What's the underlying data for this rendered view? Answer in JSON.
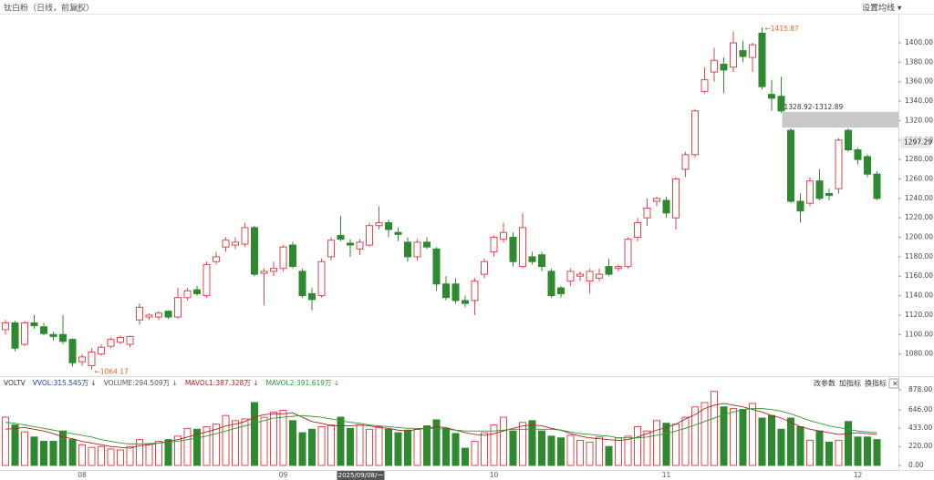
{
  "chart_data": {
    "type": "candlestick",
    "title": "钛白粉（日线，前复权）",
    "settings_button": "设置均线 ▾",
    "ylim": [
      1060,
      1430
    ],
    "yticks": [
      {
        "value": 1080,
        "label": "1080.00"
      },
      {
        "value": 1100,
        "label": "1100.00"
      },
      {
        "value": 1120,
        "label": "1120.00"
      },
      {
        "value": 1140,
        "label": "1140.00"
      },
      {
        "value": 1160,
        "label": "1160.00"
      },
      {
        "value": 1180,
        "label": "1180.00"
      },
      {
        "value": 1200,
        "label": "1200.00"
      },
      {
        "value": 1220,
        "label": "1220.00"
      },
      {
        "value": 1240,
        "label": "1240.00"
      },
      {
        "value": 1260,
        "label": "1260.00"
      },
      {
        "value": 1280,
        "label": "1280.00"
      },
      {
        "value": 1300,
        "label": "1300.00"
      },
      {
        "value": 1320,
        "label": "1320.00"
      },
      {
        "value": 1340,
        "label": "1340.00"
      },
      {
        "value": 1360,
        "label": "1360.00"
      },
      {
        "value": 1380,
        "label": "1380.00"
      },
      {
        "value": 1400,
        "label": "1400.00"
      }
    ],
    "current_price": {
      "value": 1297.29,
      "label": "1297.29"
    },
    "up_color": "#e2474a",
    "down_color": "#2f8a2f",
    "annotations": [
      "←1415.87",
      "←1064.17"
    ],
    "gap": {
      "label": "1328.92-1312.89",
      "top": 1328.92,
      "bottom": 1312.89
    },
    "categories": [
      null,
      null,
      null,
      null,
      null,
      null,
      null,
      null,
      "08",
      null,
      null,
      null,
      null,
      null,
      null,
      null,
      null,
      null,
      null,
      null,
      null,
      null,
      null,
      null,
      null,
      null,
      null,
      null,
      null,
      "09",
      null,
      null,
      null,
      null,
      null,
      null,
      null,
      "2025/09/08/一",
      null,
      null,
      null,
      null,
      null,
      null,
      null,
      null,
      null,
      null,
      null,
      null,
      null,
      "10",
      null,
      null,
      null,
      null,
      null,
      null,
      null,
      null,
      null,
      null,
      null,
      null,
      null,
      null,
      null,
      null,
      null,
      "11",
      null,
      null,
      null,
      null,
      null,
      null,
      null,
      null,
      null,
      null,
      null,
      null,
      null,
      null,
      null,
      null,
      null,
      null,
      null,
      "12",
      null,
      null
    ],
    "open": [
      1105,
      1112,
      1090,
      1112,
      1108,
      1100,
      1100,
      1095,
      1072,
      1068,
      1080,
      1088,
      1092,
      1090,
      1115,
      1118,
      1118,
      1124,
      1118,
      1138,
      1146,
      1140,
      1175,
      1190,
      1192,
      1193,
      1210,
      1163,
      1165,
      1168,
      1192,
      1165,
      1142,
      1140,
      1180,
      1202,
      1194,
      1188,
      1192,
      1212,
      1215,
      1205,
      1195,
      1180,
      1195,
      1188,
      1152,
      1152,
      1135,
      1135,
      1162,
      1185,
      1198,
      1200,
      1170,
      1180,
      1182,
      1165,
      1148,
      1155,
      1160,
      1155,
      1158,
      1170,
      1168,
      1170,
      1200,
      1220,
      1237,
      1238,
      1220,
      1270,
      1285,
      1350,
      1370,
      1378,
      1375,
      1392,
      1385,
      1410,
      1347,
      1345,
      1310,
      1237,
      1235,
      1258,
      1245,
      1250,
      1310,
      1290,
      1283,
      1265
    ],
    "high": [
      1115,
      1114,
      1114,
      1120,
      1112,
      1103,
      1120,
      1096,
      1080,
      1086,
      1090,
      1097,
      1099,
      1099,
      1132,
      1122,
      1124,
      1125,
      1148,
      1148,
      1150,
      1175,
      1185,
      1200,
      1200,
      1215,
      1212,
      1168,
      1175,
      1192,
      1195,
      1168,
      1148,
      1178,
      1200,
      1222,
      1198,
      1198,
      1215,
      1232,
      1218,
      1210,
      1200,
      1198,
      1200,
      1190,
      1160,
      1158,
      1140,
      1158,
      1178,
      1202,
      1215,
      1205,
      1225,
      1185,
      1185,
      1168,
      1150,
      1168,
      1165,
      1168,
      1168,
      1178,
      1172,
      1200,
      1220,
      1240,
      1242,
      1242,
      1262,
      1288,
      1332,
      1375,
      1395,
      1385,
      1412,
      1402,
      1400,
      1415.87,
      1362,
      1365,
      1312,
      1245,
      1262,
      1270,
      1250,
      1302,
      1312,
      1292,
      1285,
      1268
    ],
    "low": [
      1100,
      1083,
      1088,
      1106,
      1099,
      1094,
      1090,
      1067,
      1068,
      1064.17,
      1078,
      1086,
      1090,
      1087,
      1110,
      1115,
      1115,
      1116,
      1116,
      1135,
      1140,
      1138,
      1172,
      1185,
      1188,
      1190,
      1160,
      1130,
      1160,
      1165,
      1168,
      1138,
      1125,
      1138,
      1176,
      1196,
      1180,
      1182,
      1190,
      1208,
      1200,
      1196,
      1175,
      1176,
      1188,
      1145,
      1135,
      1132,
      1128,
      1120,
      1158,
      1180,
      1195,
      1170,
      1168,
      1172,
      1165,
      1138,
      1138,
      1150,
      1155,
      1142,
      1155,
      1160,
      1165,
      1168,
      1196,
      1212,
      1232,
      1220,
      1208,
      1262,
      1282,
      1348,
      1360,
      1348,
      1370,
      1380,
      1370,
      1352,
      1330,
      1328,
      1235,
      1215,
      1232,
      1238,
      1238,
      1245,
      1288,
      1275,
      1262,
      1238
    ],
    "close": [
      1112,
      1086,
      1112,
      1109,
      1101,
      1098,
      1093,
      1071,
      1077,
      1082,
      1087,
      1095,
      1097,
      1098,
      1128,
      1120,
      1122,
      1118,
      1138,
      1145,
      1142,
      1172,
      1180,
      1197,
      1195,
      1210,
      1162,
      1165,
      1168,
      1190,
      1170,
      1140,
      1136,
      1175,
      1197,
      1198,
      1192,
      1195,
      1212,
      1215,
      1208,
      1203,
      1180,
      1195,
      1190,
      1152,
      1138,
      1135,
      1132,
      1155,
      1175,
      1200,
      1205,
      1175,
      1210,
      1175,
      1170,
      1140,
      1142,
      1165,
      1162,
      1165,
      1162,
      1162,
      1170,
      1198,
      1215,
      1230,
      1240,
      1225,
      1260,
      1285,
      1330,
      1362,
      1382,
      1372,
      1400,
      1386,
      1398,
      1355,
      1343,
      1330,
      1237,
      1227,
      1258,
      1240,
      1243,
      1300,
      1290,
      1280,
      1265,
      1240
    ],
    "volume_panel": {
      "indicators": [
        "VOLTV",
        "VVOL:315.545万 ↓",
        "VOLUME:294.509万 ↓",
        "MAVOL1:387.328万 ↓",
        "MAVOL2:391.619万 ↓"
      ],
      "buttons": [
        "改参数",
        "加指标",
        "换指标",
        "×"
      ],
      "ylim": [
        0,
        984
      ],
      "yticks": [
        {
          "value": 878,
          "label": "878.00"
        },
        {
          "value": 646,
          "label": "646.00"
        },
        {
          "value": 433,
          "label": "433.00"
        },
        {
          "value": 220,
          "label": "220.00"
        },
        {
          "value": 0,
          "label": "0.00"
        }
      ],
      "volume": [
        560,
        470,
        390,
        330,
        280,
        280,
        400,
        300,
        240,
        210,
        220,
        190,
        180,
        220,
        300,
        250,
        280,
        300,
        340,
        430,
        420,
        450,
        480,
        580,
        520,
        540,
        730,
        560,
        620,
        640,
        520,
        380,
        420,
        450,
        470,
        560,
        430,
        470,
        420,
        450,
        420,
        380,
        410,
        420,
        460,
        530,
        430,
        370,
        200,
        280,
        380,
        470,
        560,
        400,
        500,
        520,
        400,
        340,
        320,
        350,
        290,
        270,
        330,
        220,
        320,
        340,
        450,
        400,
        520,
        490,
        480,
        560,
        680,
        730,
        860,
        680,
        660,
        650,
        720,
        550,
        580,
        420,
        550,
        450,
        290,
        400,
        270,
        290,
        510,
        330,
        330,
        300
      ],
      "series": [
        {
          "name": "MAVOL1",
          "color": "#b22222",
          "values": [
            420,
            430,
            440,
            420,
            400,
            370,
            330,
            310,
            280,
            260,
            240,
            220,
            210,
            200,
            230,
            240,
            260,
            280,
            300,
            330,
            360,
            390,
            420,
            460,
            480,
            510,
            560,
            590,
            600,
            600,
            610,
            560,
            510,
            490,
            460,
            460,
            460,
            470,
            460,
            440,
            430,
            410,
            400,
            420,
            430,
            450,
            440,
            410,
            380,
            360,
            350,
            370,
            400,
            430,
            460,
            470,
            460,
            430,
            410,
            370,
            340,
            320,
            310,
            300,
            290,
            300,
            330,
            370,
            410,
            440,
            480,
            540,
            590,
            660,
            700,
            720,
            700,
            680,
            650,
            620,
            580,
            550,
            500,
            450,
            420,
            400,
            380,
            360,
            370,
            380,
            370,
            360
          ]
        },
        {
          "name": "MAVOL2",
          "color": "#2e9a2e",
          "values": [
            500,
            490,
            470,
            450,
            430,
            410,
            390,
            370,
            350,
            330,
            300,
            280,
            260,
            250,
            250,
            255,
            260,
            270,
            280,
            300,
            320,
            340,
            370,
            400,
            430,
            460,
            490,
            520,
            550,
            560,
            570,
            580,
            570,
            560,
            540,
            520,
            500,
            490,
            470,
            460,
            450,
            440,
            430,
            430,
            430,
            430,
            420,
            410,
            400,
            400,
            400,
            400,
            410,
            420,
            420,
            420,
            420,
            420,
            410,
            390,
            370,
            360,
            350,
            340,
            320,
            320,
            320,
            330,
            350,
            370,
            400,
            430,
            470,
            510,
            550,
            590,
            620,
            650,
            660,
            660,
            650,
            630,
            600,
            560,
            520,
            490,
            460,
            440,
            420,
            400,
            390,
            380
          ]
        }
      ]
    }
  }
}
